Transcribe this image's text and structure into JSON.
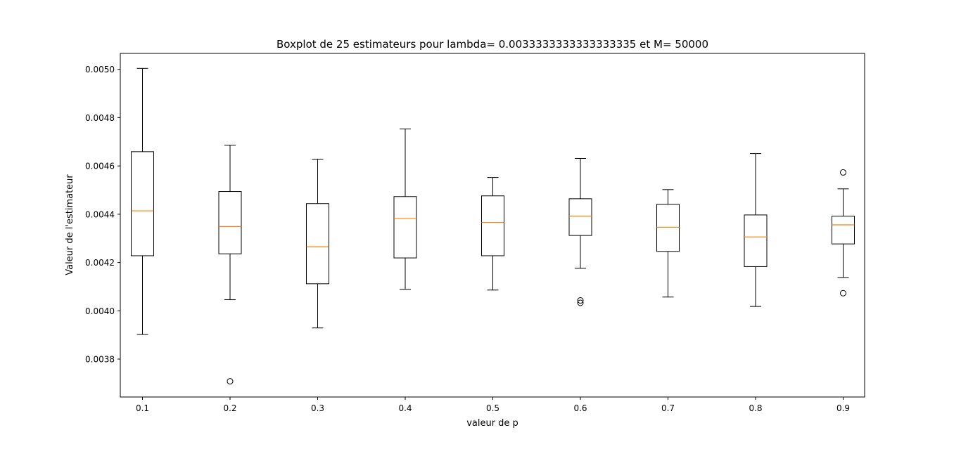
{
  "chart_data": {
    "type": "boxplot",
    "title": "Boxplot de 25 estimateurs  pour lambda= 0.0033333333333333335 et M= 50000",
    "xlabel": "valeur de p",
    "ylabel": "Valeur de l'estimateur",
    "categories": [
      "0.1",
      "0.2",
      "0.3",
      "0.4",
      "0.5",
      "0.6",
      "0.7",
      "0.8",
      "0.9"
    ],
    "ylim": [
      0.003643,
      0.005066
    ],
    "yticks": [
      0.0038,
      0.004,
      0.0042,
      0.0044,
      0.0046,
      0.0048,
      0.005
    ],
    "ytick_labels": [
      "0.0038",
      "0.0040",
      "0.0042",
      "0.0044",
      "0.0046",
      "0.0048",
      "0.0050"
    ],
    "grid": false,
    "boxes": [
      {
        "label": "0.1",
        "whisker_low": 0.003902,
        "q1": 0.004228,
        "median": 0.004414,
        "q3": 0.004659,
        "whisker_high": 0.005004,
        "outliers": []
      },
      {
        "label": "0.2",
        "whisker_low": 0.004046,
        "q1": 0.004236,
        "median": 0.004349,
        "q3": 0.004494,
        "whisker_high": 0.004686,
        "outliers": [
          0.003708
        ]
      },
      {
        "label": "0.3",
        "whisker_low": 0.003929,
        "q1": 0.004112,
        "median": 0.004265,
        "q3": 0.004444,
        "whisker_high": 0.004628,
        "outliers": []
      },
      {
        "label": "0.4",
        "whisker_low": 0.004089,
        "q1": 0.004219,
        "median": 0.004382,
        "q3": 0.004473,
        "whisker_high": 0.004753,
        "outliers": []
      },
      {
        "label": "0.5",
        "whisker_low": 0.004086,
        "q1": 0.004228,
        "median": 0.004366,
        "q3": 0.004476,
        "whisker_high": 0.004552,
        "outliers": []
      },
      {
        "label": "0.6",
        "whisker_low": 0.004176,
        "q1": 0.004312,
        "median": 0.004392,
        "q3": 0.004464,
        "whisker_high": 0.004631,
        "outliers": [
          0.004033,
          0.004043
        ]
      },
      {
        "label": "0.7",
        "whisker_low": 0.004057,
        "q1": 0.004246,
        "median": 0.004346,
        "q3": 0.004441,
        "whisker_high": 0.004502,
        "outliers": []
      },
      {
        "label": "0.8",
        "whisker_low": 0.004018,
        "q1": 0.004183,
        "median": 0.004306,
        "q3": 0.004397,
        "whisker_high": 0.004651,
        "outliers": []
      },
      {
        "label": "0.9",
        "whisker_low": 0.004138,
        "q1": 0.004277,
        "median": 0.004356,
        "q3": 0.004392,
        "whisker_high": 0.004505,
        "outliers": [
          0.004073,
          0.004573
        ]
      }
    ],
    "colors": {
      "box": "#000000",
      "median": "#ff7f0e",
      "outlier": "#000000"
    }
  }
}
